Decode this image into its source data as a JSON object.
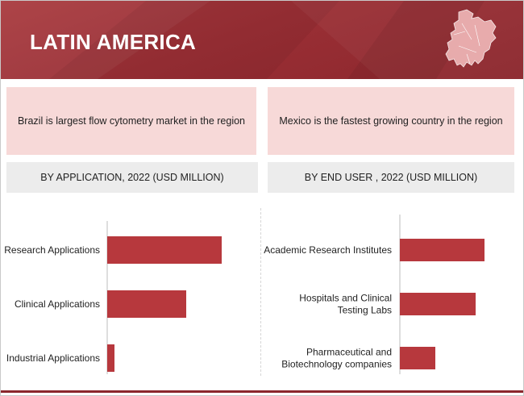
{
  "header": {
    "title": "LATIN AMERICA",
    "map_icon": "latin-america-map-icon",
    "colors": {
      "primary": "#9a2f35",
      "dark": "#8b262c",
      "bar": "#b7383d",
      "card": "#f7d9d8",
      "subheader": "#ececec"
    }
  },
  "left": {
    "highlight": "Brazil is largest flow cytometry market  in the region",
    "chart_title": "BY APPLICATION, 2022 (USD MILLION)"
  },
  "right": {
    "highlight": "Mexico is the fastest growing country in the region",
    "chart_title": "BY END USER , 2022 (USD MILLION)"
  },
  "chart_data": [
    {
      "type": "bar",
      "orientation": "horizontal",
      "title": "BY APPLICATION, 2022 (USD MILLION)",
      "categories": [
        "Research Applications",
        "Clinical Applications",
        "Industrial Applications"
      ],
      "values": [
        142,
        98,
        9
      ],
      "xlim": [
        0,
        150
      ],
      "grid": false,
      "legend": "none"
    },
    {
      "type": "bar",
      "orientation": "horizontal",
      "title": "BY END USER , 2022 (USD MILLION)",
      "categories": [
        "Academic Research Institutes",
        "Hospitals and Clinical Testing Labs",
        "Pharmaceutical and Biotechnology companies"
      ],
      "values": [
        105,
        94,
        44
      ],
      "xlim": [
        0,
        150
      ],
      "grid": false,
      "legend": "none"
    }
  ]
}
